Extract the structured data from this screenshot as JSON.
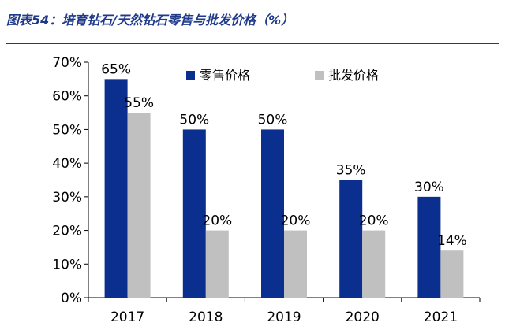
{
  "figure_title": "图表54：培育钻石/天然钻石零售与批发价格（%）",
  "colors": {
    "retail": "#0a2f8e",
    "wholesale": "#c0c0c0",
    "title": "#1f3a8a"
  },
  "chart_data": {
    "type": "bar",
    "categories": [
      "2017",
      "2018",
      "2019",
      "2020",
      "2021"
    ],
    "series": [
      {
        "name": "零售价格",
        "values": [
          65,
          50,
          50,
          35,
          30
        ],
        "labels": [
          "65%",
          "50%",
          "50%",
          "35%",
          "30%"
        ]
      },
      {
        "name": "批发价格",
        "values": [
          55,
          20,
          20,
          20,
          14
        ],
        "labels": [
          "55%",
          "20%",
          "20%",
          "20%",
          "14%"
        ]
      }
    ],
    "yticks": [
      "0%",
      "10%",
      "20%",
      "30%",
      "40%",
      "50%",
      "60%",
      "70%"
    ],
    "ylim": [
      0,
      70
    ],
    "legend_position": "top-center",
    "grid": false
  }
}
